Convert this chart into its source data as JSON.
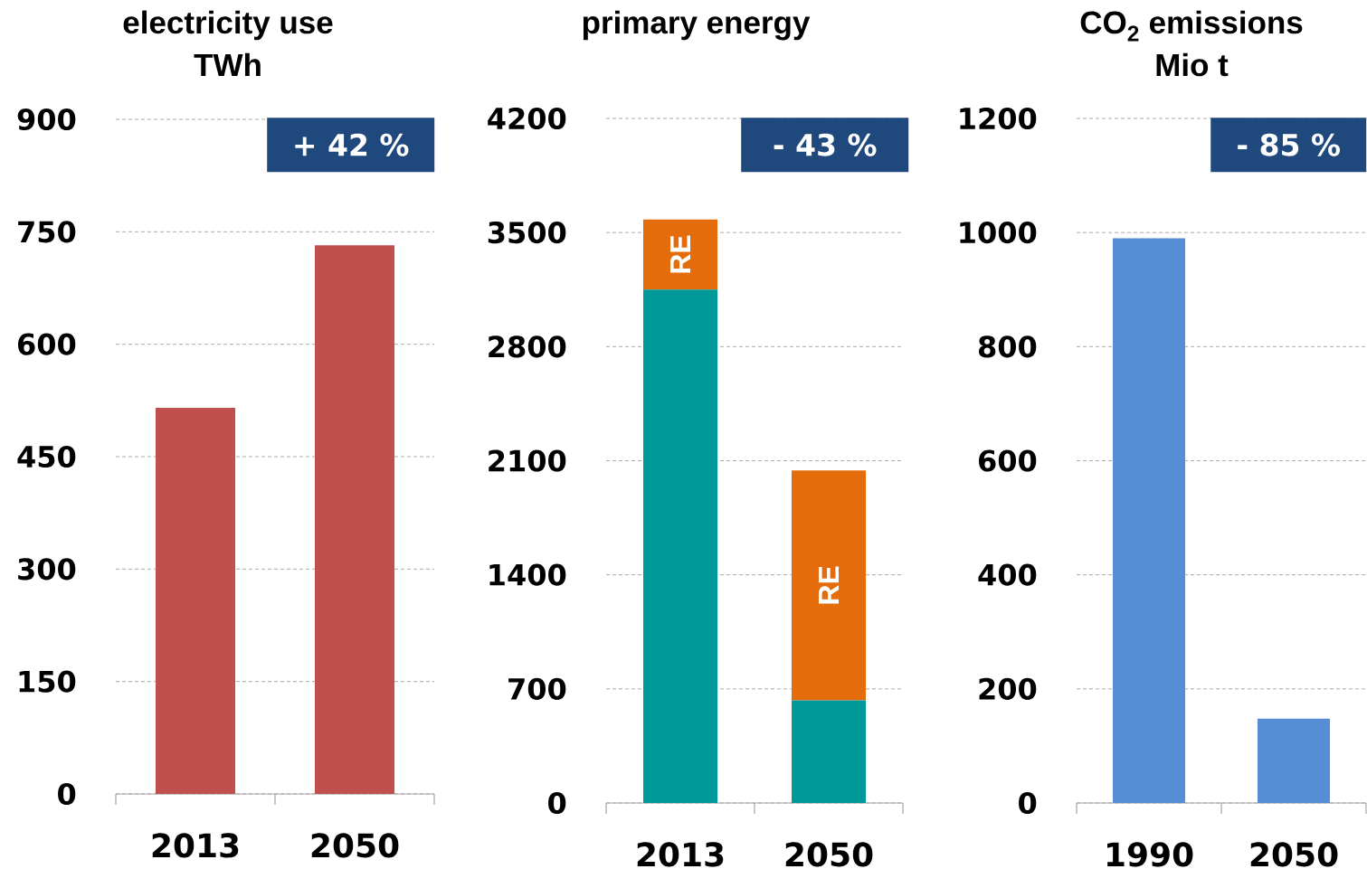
{
  "chart_data": [
    {
      "type": "bar",
      "title": "electricity use",
      "subtitle": "TWh",
      "categories": [
        "2013",
        "2050"
      ],
      "series": [
        {
          "color": "#c0504d",
          "values": [
            515,
            732
          ]
        }
      ],
      "ylim": [
        0,
        900
      ],
      "yticks": [
        0,
        150,
        300,
        450,
        600,
        750,
        900
      ],
      "grid": "y",
      "annotations": [
        "+ 42 %"
      ]
    },
    {
      "type": "bar",
      "title": "primary energy",
      "categories": [
        "2013",
        "2050"
      ],
      "stacked": true,
      "series": [
        {
          "color": "#009999",
          "values": [
            3150,
            630
          ]
        },
        {
          "name": "RE",
          "color": "#e46c0a",
          "values": [
            430,
            1410
          ]
        }
      ],
      "ylim": [
        0,
        4200
      ],
      "yticks": [
        0,
        700,
        1400,
        2100,
        2800,
        3500,
        4200
      ],
      "grid": "y",
      "annotations": [
        "- 43 %"
      ]
    },
    {
      "type": "bar",
      "title": "CO$_{2}$ emissions",
      "subtitle": "Mio t",
      "categories": [
        "1990",
        "2050"
      ],
      "series": [
        {
          "color": "#558ed5",
          "values": [
            990,
            148
          ]
        }
      ],
      "ylim": [
        0,
        1200
      ],
      "yticks": [
        0,
        200,
        400,
        600,
        800,
        1000,
        1200
      ],
      "grid": "y",
      "annotations": [
        "- 85 %"
      ]
    }
  ]
}
